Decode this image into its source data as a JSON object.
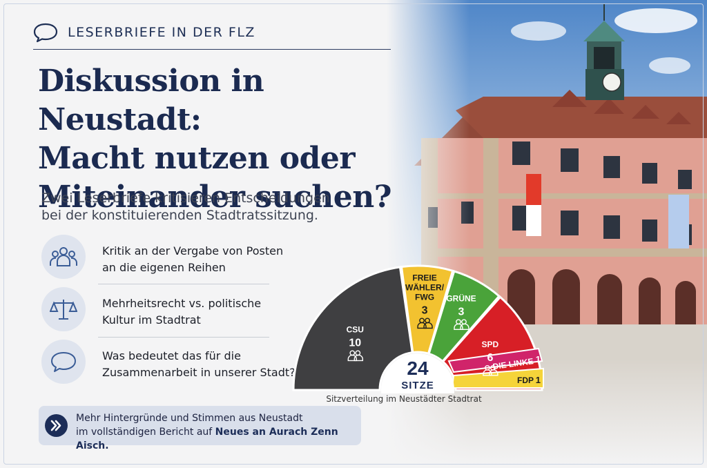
{
  "kicker": "LESERBRIEFE IN DER FLZ",
  "headline": [
    "Diskussion in Neustadt:",
    "Macht nutzen oder",
    "Miteinander suchen?"
  ],
  "subline": [
    "Zwei Leserbriefe kritisieren Entscheidungen",
    "bei der konstituierenden Stadtratssitzung."
  ],
  "bullets": [
    {
      "icon": "group-icon",
      "lines": [
        "Kritik an der Vergabe von Posten",
        "an die eigenen Reihen"
      ]
    },
    {
      "icon": "scales-icon",
      "lines": [
        "Mehrheitsrecht vs. politische",
        "Kultur im Stadtrat"
      ]
    },
    {
      "icon": "speech-bubble-icon",
      "lines": [
        "Was bedeutet das für die",
        "Zusammenarbeit in unserer Stadt?"
      ]
    }
  ],
  "callout": {
    "line1": "Mehr Hintergründe und Stimmen aus Neustadt",
    "line2_prefix": "im vollständigen Bericht auf ",
    "line2_link": "Neues an Aurach Zenn Aisch."
  },
  "chart_data": {
    "type": "pie",
    "subtype": "parliament-semicircle",
    "total_label": "24",
    "total_unit": "SITZE",
    "caption": "Sitzverteilung im Neustädter Stadtrat",
    "slices": [
      {
        "label": "CSU",
        "value": 10,
        "color": "#3f3f41"
      },
      {
        "label_lines": [
          "FREIE",
          "WÄHLER/",
          "FWG"
        ],
        "value": 3,
        "color": "#f2c230"
      },
      {
        "label": "GRÜNE",
        "value": 3,
        "color": "#4aa33a"
      },
      {
        "label": "SPD",
        "value": 6,
        "color": "#d71f26"
      },
      {
        "label": "DIE LINKE",
        "value": 1,
        "color": "#d0246a"
      },
      {
        "label": "FDP",
        "value": 1,
        "color": "#f5d43a"
      }
    ]
  }
}
